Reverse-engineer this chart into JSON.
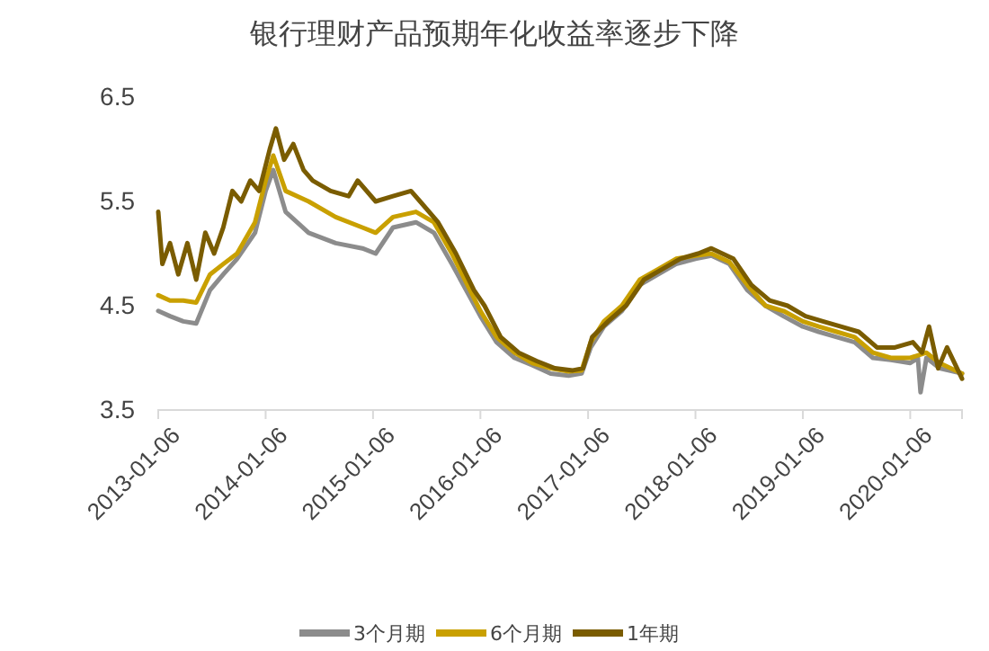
{
  "chart_data": {
    "type": "line",
    "title": "银行理财产品预期年化收益率逐步下降",
    "xlim": [
      "2013-01-06",
      "2020-06-30"
    ],
    "xticks": [
      "2013-01-06",
      "2014-01-06",
      "2015-01-06",
      "2016-01-06",
      "2017-01-06",
      "2018-01-06",
      "2019-01-06",
      "2020-01-06"
    ],
    "ylim": [
      3.5,
      6.5
    ],
    "yticks": [
      3.5,
      4.5,
      5.5,
      6.5
    ],
    "legend": "bottom",
    "grid": false,
    "series": [
      {
        "name": "3个月期",
        "color": "#8c8c8c",
        "x": [
          "2013-01-06",
          "2013-02-15",
          "2013-04-01",
          "2013-05-15",
          "2013-07-01",
          "2013-08-15",
          "2013-10-01",
          "2013-12-01",
          "2014-01-06",
          "2014-02-01",
          "2014-03-15",
          "2014-06-01",
          "2014-09-01",
          "2014-12-01",
          "2015-01-15",
          "2015-03-15",
          "2015-06-01",
          "2015-08-01",
          "2015-10-01",
          "2016-01-06",
          "2016-03-01",
          "2016-05-01",
          "2016-07-01",
          "2016-09-01",
          "2016-11-01",
          "2016-12-15",
          "2017-01-15",
          "2017-03-01",
          "2017-05-01",
          "2017-07-01",
          "2017-09-01",
          "2017-11-01",
          "2018-01-06",
          "2018-03-01",
          "2018-05-01",
          "2018-07-01",
          "2018-09-01",
          "2018-11-01",
          "2019-01-06",
          "2019-03-01",
          "2019-05-01",
          "2019-07-01",
          "2019-09-01",
          "2019-11-01",
          "2020-01-06",
          "2020-02-01",
          "2020-02-10",
          "2020-03-01",
          "2020-04-15",
          "2020-06-30"
        ],
        "values": [
          4.45,
          4.4,
          4.35,
          4.33,
          4.65,
          4.8,
          4.95,
          5.2,
          5.6,
          5.8,
          5.4,
          5.2,
          5.1,
          5.05,
          5.0,
          5.25,
          5.3,
          5.2,
          4.9,
          4.4,
          4.15,
          4.0,
          3.93,
          3.85,
          3.83,
          3.85,
          4.1,
          4.3,
          4.45,
          4.7,
          4.8,
          4.9,
          4.95,
          4.98,
          4.9,
          4.65,
          4.5,
          4.4,
          4.3,
          4.25,
          4.2,
          4.15,
          4.0,
          3.98,
          3.95,
          4.0,
          3.67,
          4.0,
          3.9,
          3.85
        ]
      },
      {
        "name": "6个月期",
        "color": "#c9a000",
        "x": [
          "2013-01-06",
          "2013-02-15",
          "2013-04-01",
          "2013-05-15",
          "2013-07-01",
          "2013-08-15",
          "2013-10-01",
          "2013-12-01",
          "2014-01-06",
          "2014-02-01",
          "2014-03-15",
          "2014-06-01",
          "2014-09-01",
          "2014-12-01",
          "2015-01-15",
          "2015-03-15",
          "2015-06-01",
          "2015-08-01",
          "2015-10-01",
          "2016-01-06",
          "2016-03-01",
          "2016-05-01",
          "2016-07-01",
          "2016-09-01",
          "2016-11-01",
          "2016-12-15",
          "2017-01-15",
          "2017-03-01",
          "2017-05-01",
          "2017-07-01",
          "2017-09-01",
          "2017-11-01",
          "2018-01-06",
          "2018-03-01",
          "2018-05-01",
          "2018-07-01",
          "2018-09-01",
          "2018-11-01",
          "2019-01-06",
          "2019-03-01",
          "2019-05-01",
          "2019-07-01",
          "2019-09-01",
          "2019-11-01",
          "2020-01-06",
          "2020-03-01",
          "2020-04-15",
          "2020-06-30"
        ],
        "values": [
          4.6,
          4.55,
          4.55,
          4.53,
          4.8,
          4.9,
          5.0,
          5.3,
          5.7,
          5.94,
          5.6,
          5.5,
          5.35,
          5.25,
          5.2,
          5.35,
          5.4,
          5.3,
          5.0,
          4.45,
          4.2,
          4.05,
          3.95,
          3.9,
          3.87,
          3.88,
          4.15,
          4.35,
          4.5,
          4.75,
          4.85,
          4.95,
          4.98,
          5.0,
          4.92,
          4.7,
          4.5,
          4.45,
          4.35,
          4.3,
          4.25,
          4.2,
          4.05,
          4.0,
          4.0,
          4.05,
          3.95,
          3.85
        ]
      },
      {
        "name": "1年期",
        "color": "#7a5c00",
        "x": [
          "2013-01-06",
          "2013-01-20",
          "2013-02-15",
          "2013-03-15",
          "2013-04-15",
          "2013-05-15",
          "2013-06-15",
          "2013-07-15",
          "2013-08-15",
          "2013-09-15",
          "2013-10-15",
          "2013-11-15",
          "2013-12-15",
          "2014-01-20",
          "2014-02-10",
          "2014-03-10",
          "2014-04-10",
          "2014-05-15",
          "2014-06-15",
          "2014-08-15",
          "2014-10-15",
          "2014-11-15",
          "2015-01-15",
          "2015-03-15",
          "2015-05-15",
          "2015-06-15",
          "2015-08-15",
          "2015-10-15",
          "2015-12-15",
          "2016-01-20",
          "2016-03-15",
          "2016-05-15",
          "2016-07-15",
          "2016-09-15",
          "2016-11-15",
          "2016-12-20",
          "2017-01-20",
          "2017-03-15",
          "2017-05-15",
          "2017-07-15",
          "2017-09-15",
          "2017-11-15",
          "2018-01-15",
          "2018-03-01",
          "2018-05-15",
          "2018-07-15",
          "2018-09-15",
          "2018-11-15",
          "2019-01-15",
          "2019-03-15",
          "2019-05-15",
          "2019-07-15",
          "2019-09-15",
          "2019-11-15",
          "2020-01-15",
          "2020-02-15",
          "2020-03-10",
          "2020-04-10",
          "2020-05-10",
          "2020-06-30"
        ],
        "values": [
          5.4,
          4.9,
          5.1,
          4.8,
          5.1,
          4.75,
          5.2,
          5.0,
          5.25,
          5.6,
          5.5,
          5.7,
          5.6,
          6.0,
          6.2,
          5.9,
          6.05,
          5.8,
          5.7,
          5.6,
          5.55,
          5.7,
          5.5,
          5.55,
          5.6,
          5.5,
          5.3,
          5.0,
          4.65,
          4.5,
          4.2,
          4.05,
          3.97,
          3.9,
          3.88,
          3.9,
          4.2,
          4.35,
          4.5,
          4.75,
          4.85,
          4.95,
          5.0,
          5.05,
          4.95,
          4.7,
          4.55,
          4.5,
          4.4,
          4.35,
          4.3,
          4.25,
          4.1,
          4.1,
          4.15,
          4.05,
          4.3,
          3.9,
          4.1,
          3.8
        ]
      }
    ]
  }
}
